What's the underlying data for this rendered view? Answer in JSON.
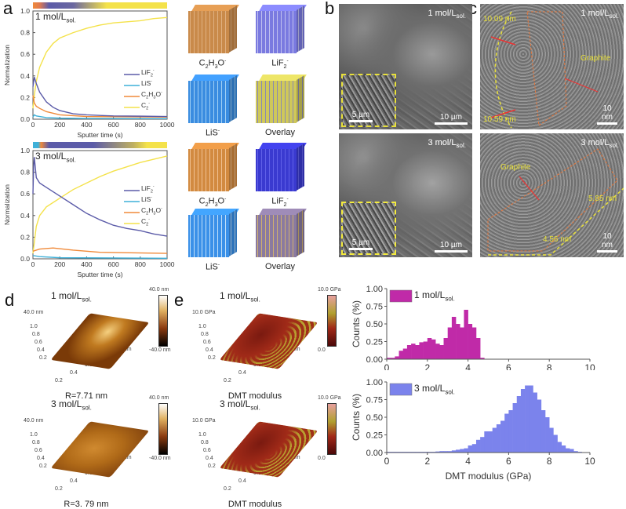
{
  "panels": {
    "a": "a",
    "b": "b",
    "c": "c",
    "d": "d",
    "e": "e"
  },
  "conc": {
    "c1": "1 mol/L",
    "c3": "3 mol/L",
    "sub": "sol."
  },
  "ions": {
    "lif2": {
      "base": "LiF",
      "sub": "2",
      "sup": "-"
    },
    "lis": {
      "base": "LiS",
      "sub": "",
      "sup": "-"
    },
    "c2h3o": {
      "base": "C",
      "sub": "2",
      "mid": "H",
      "sub2": "3",
      "end": "O",
      "sup": "-"
    },
    "c2": {
      "base": "C",
      "sub": "2",
      "sup": "-"
    },
    "overlay": "Overlay"
  },
  "sem": {
    "scale_main": "10 µm",
    "scale_inset": "5 µm"
  },
  "tem": {
    "top_thick1": "10.09 nm",
    "top_thick2": "10.59 nm",
    "graphite": "Graphite",
    "scale": "10 nm",
    "bot_thick1": "5.85 nm",
    "bot_thick2": "4.56 nm"
  },
  "afm": {
    "height_max": "40.0 nm",
    "height_min": "-40.0 nm",
    "z_label": "40.0 nm",
    "y_ticks": [
      "1.0",
      "0.8",
      "0.6",
      "0.4",
      "0.2"
    ],
    "x_ticks": [
      "0.2",
      "0.4",
      "0.6",
      "0.8",
      "1.0 µm"
    ],
    "r1": "R=7.71 nm",
    "r3": "R=3. 79 nm",
    "mod_max": "10.0 GPa",
    "mod_min": "0.0",
    "mod_z": "10.0 GPa",
    "mod_caption": "DMT modulus"
  },
  "colors": {
    "lif2": "#5b5ba8",
    "lis": "#3fb0d8",
    "c2h3o": "#f08a3a",
    "c2": "#f4e24a",
    "hist1": "#c02aa8",
    "hist3": "#7b83ec",
    "dash": "#e8e03a"
  },
  "chart_data": [
    {
      "type": "line",
      "id": "tof-1M",
      "legend_placement": "right",
      "xlabel": "Sputter time (s)",
      "ylabel": "Normalization",
      "xlim": [
        0,
        1000
      ],
      "ylim": [
        0,
        1
      ],
      "xticks": [
        "0",
        "200",
        "400",
        "600",
        "800",
        "1000"
      ],
      "yticks": [
        "0.0",
        "0.2",
        "0.4",
        "0.6",
        "0.8",
        "1.0"
      ],
      "series": [
        {
          "key": "lif2",
          "x": [
            0,
            10,
            25,
            50,
            100,
            150,
            200,
            300,
            400,
            600,
            800,
            1000
          ],
          "y": [
            0.3,
            0.39,
            0.33,
            0.25,
            0.16,
            0.11,
            0.08,
            0.05,
            0.04,
            0.03,
            0.028,
            0.025
          ]
        },
        {
          "key": "lis",
          "x": [
            0,
            10,
            25,
            100,
            200,
            400,
            1000
          ],
          "y": [
            0.02,
            0.04,
            0.03,
            0.015,
            0.01,
            0.007,
            0.005
          ]
        },
        {
          "key": "c2h3o",
          "x": [
            0,
            10,
            25,
            50,
            100,
            200,
            400,
            1000
          ],
          "y": [
            0.22,
            0.15,
            0.12,
            0.1,
            0.07,
            0.04,
            0.025,
            0.02
          ]
        },
        {
          "key": "c2",
          "x": [
            0,
            10,
            25,
            50,
            100,
            150,
            200,
            300,
            400,
            500,
            600,
            700,
            800,
            900,
            1000
          ],
          "y": [
            0.1,
            0.22,
            0.35,
            0.48,
            0.62,
            0.7,
            0.75,
            0.8,
            0.84,
            0.87,
            0.89,
            0.9,
            0.91,
            0.93,
            0.94
          ]
        }
      ]
    },
    {
      "type": "line",
      "id": "tof-3M",
      "legend_placement": "right",
      "xlabel": "Sputter time (s)",
      "ylabel": "Normalization",
      "xlim": [
        0,
        1000
      ],
      "ylim": [
        0,
        1
      ],
      "xticks": [
        "0",
        "200",
        "400",
        "600",
        "800",
        "1000"
      ],
      "yticks": [
        "0.0",
        "0.2",
        "0.4",
        "0.6",
        "0.8",
        "1.0"
      ],
      "series": [
        {
          "key": "lif2",
          "x": [
            0,
            5,
            10,
            25,
            50,
            100,
            200,
            300,
            400,
            500,
            600,
            700,
            800,
            900,
            1000
          ],
          "y": [
            0.6,
            0.85,
            0.94,
            0.75,
            0.7,
            0.66,
            0.58,
            0.5,
            0.42,
            0.36,
            0.31,
            0.28,
            0.26,
            0.23,
            0.21
          ]
        },
        {
          "key": "lis",
          "x": [
            0,
            50,
            200,
            1000
          ],
          "y": [
            0.03,
            0.02,
            0.01,
            0.005
          ]
        },
        {
          "key": "c2h3o",
          "x": [
            0,
            50,
            150,
            300,
            500,
            1000
          ],
          "y": [
            0.07,
            0.09,
            0.1,
            0.08,
            0.06,
            0.05
          ]
        },
        {
          "key": "c2",
          "x": [
            0,
            25,
            50,
            100,
            200,
            300,
            400,
            500,
            600,
            700,
            800,
            900,
            1000
          ],
          "y": [
            0.05,
            0.3,
            0.4,
            0.48,
            0.56,
            0.64,
            0.7,
            0.76,
            0.81,
            0.85,
            0.89,
            0.92,
            0.95
          ]
        }
      ]
    },
    {
      "type": "bar",
      "id": "hist-1M",
      "ylabel": "Counts (%)",
      "xlim": [
        0,
        10
      ],
      "ylim": [
        0,
        1
      ],
      "xticks": [
        "0",
        "2",
        "4",
        "6",
        "8",
        "10"
      ],
      "yticks": [
        "0.00",
        "0.25",
        "0.50",
        "0.75",
        "1.00"
      ],
      "bin_width": 0.2,
      "x_start": 0,
      "values": [
        0.02,
        0.02,
        0.04,
        0.12,
        0.15,
        0.2,
        0.22,
        0.2,
        0.24,
        0.25,
        0.3,
        0.28,
        0.22,
        0.2,
        0.3,
        0.45,
        0.6,
        0.5,
        0.45,
        0.7,
        0.5,
        0.45,
        0.3,
        0.02,
        0,
        0,
        0,
        0,
        0,
        0,
        0,
        0,
        0,
        0,
        0,
        0,
        0,
        0,
        0,
        0,
        0,
        0,
        0,
        0,
        0,
        0,
        0,
        0,
        0,
        0
      ]
    },
    {
      "type": "bar",
      "id": "hist-3M",
      "xlabel": "DMT modulus (GPa)",
      "ylabel": "Counts (%)",
      "xlim": [
        0,
        10
      ],
      "ylim": [
        0,
        1
      ],
      "xticks": [
        "0",
        "2",
        "4",
        "6",
        "8",
        "10"
      ],
      "yticks": [
        "0.00",
        "0.25",
        "0.50",
        "0.75",
        "1.00"
      ],
      "bin_width": 0.2,
      "x_start": 0,
      "values": [
        0.01,
        0.01,
        0.01,
        0.01,
        0.01,
        0.01,
        0.01,
        0.01,
        0.01,
        0.01,
        0.01,
        0.01,
        0.015,
        0.02,
        0.02,
        0.02,
        0.03,
        0.04,
        0.05,
        0.06,
        0.1,
        0.12,
        0.18,
        0.22,
        0.3,
        0.3,
        0.35,
        0.4,
        0.45,
        0.55,
        0.6,
        0.7,
        0.8,
        0.9,
        0.95,
        0.95,
        0.85,
        0.75,
        0.6,
        0.5,
        0.35,
        0.25,
        0.15,
        0.1,
        0.06,
        0.05,
        0.02,
        0.01,
        0,
        0
      ]
    }
  ]
}
